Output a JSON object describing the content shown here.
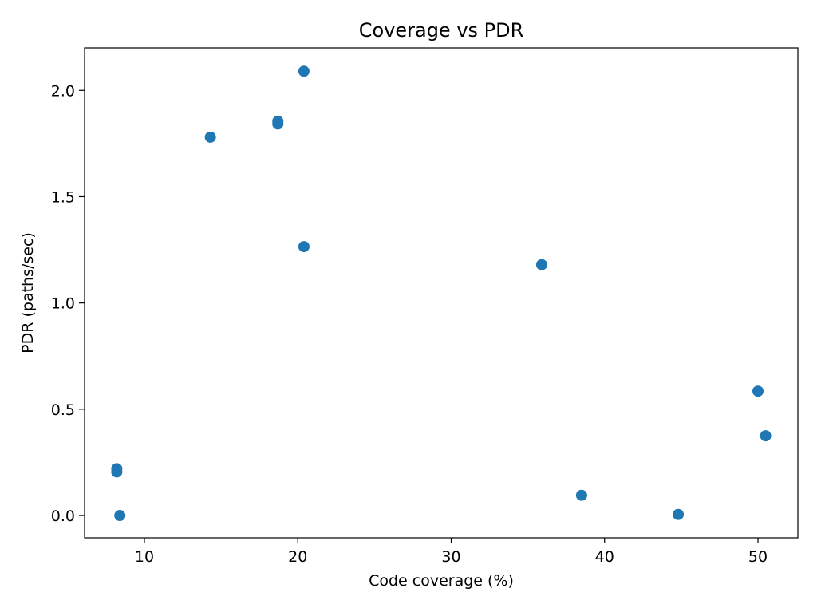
{
  "chart_data": {
    "type": "scatter",
    "title": "Coverage vs PDR",
    "xlabel": "Code coverage (%)",
    "ylabel": "PDR (paths/sec)",
    "xlim": [
      6.1,
      52.6
    ],
    "ylim": [
      -0.105,
      2.2
    ],
    "xticks": [
      10,
      20,
      30,
      40,
      50
    ],
    "xtick_labels": [
      "10",
      "20",
      "30",
      "40",
      "50"
    ],
    "yticks": [
      0.0,
      0.5,
      1.0,
      1.5,
      2.0
    ],
    "ytick_labels": [
      "0.0",
      "0.5",
      "1.0",
      "1.5",
      "2.0"
    ],
    "grid": false,
    "legend": "none",
    "colors": {
      "marker": "#1f77b4"
    },
    "series": [
      {
        "points": [
          {
            "x": 8.2,
            "y": 0.22
          },
          {
            "x": 8.2,
            "y": 0.205
          },
          {
            "x": 8.4,
            "y": 0.0
          },
          {
            "x": 14.3,
            "y": 1.78
          },
          {
            "x": 18.7,
            "y": 1.855
          },
          {
            "x": 18.7,
            "y": 1.842
          },
          {
            "x": 20.4,
            "y": 2.09
          },
          {
            "x": 20.4,
            "y": 1.265
          },
          {
            "x": 35.9,
            "y": 1.18
          },
          {
            "x": 38.5,
            "y": 0.095
          },
          {
            "x": 44.8,
            "y": 0.005
          },
          {
            "x": 50.0,
            "y": 0.585
          },
          {
            "x": 50.5,
            "y": 0.375
          }
        ]
      }
    ]
  }
}
